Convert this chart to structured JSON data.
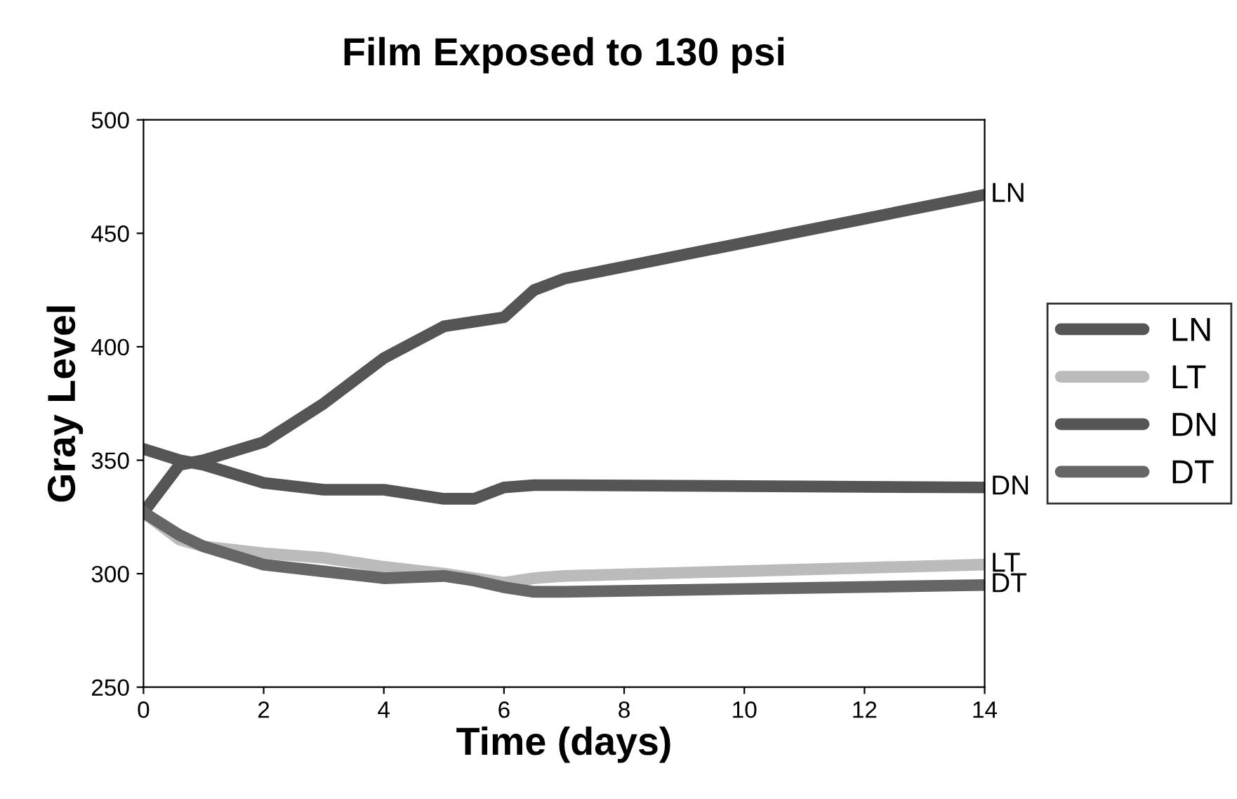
{
  "chart_data": {
    "type": "line",
    "title": "Film Exposed to 130 psi",
    "xlabel": "Time (days)",
    "ylabel": "Gray Level",
    "x": [
      0,
      0.6,
      1,
      2,
      3,
      4,
      5,
      5.5,
      6,
      6.5,
      7,
      14
    ],
    "series": [
      {
        "name": "LN",
        "color": "#555555",
        "values": [
          327,
          348,
          350,
          358,
          375,
          395,
          409,
          411,
          413,
          425,
          430,
          467
        ]
      },
      {
        "name": "LT",
        "color": "#bbbbbb",
        "values": [
          327,
          315,
          312,
          309,
          307,
          303,
          300,
          298,
          296,
          298,
          299,
          304
        ]
      },
      {
        "name": "DN",
        "color": "#555555",
        "values": [
          355,
          350,
          348,
          340,
          337,
          337,
          333,
          333,
          338,
          339,
          339,
          338
        ]
      },
      {
        "name": "DT",
        "color": "#666666",
        "values": [
          327,
          317,
          312,
          304,
          301,
          298,
          299,
          297,
          294,
          292,
          292,
          295
        ]
      }
    ],
    "xlim": [
      0,
      14
    ],
    "xticks": [
      0,
      2,
      4,
      6,
      8,
      10,
      12,
      14
    ],
    "ylim": [
      250,
      500
    ],
    "yticks": [
      250,
      300,
      350,
      400,
      450,
      500
    ],
    "legend": "right",
    "grid": false,
    "marker": "none",
    "line_style": "solid"
  }
}
